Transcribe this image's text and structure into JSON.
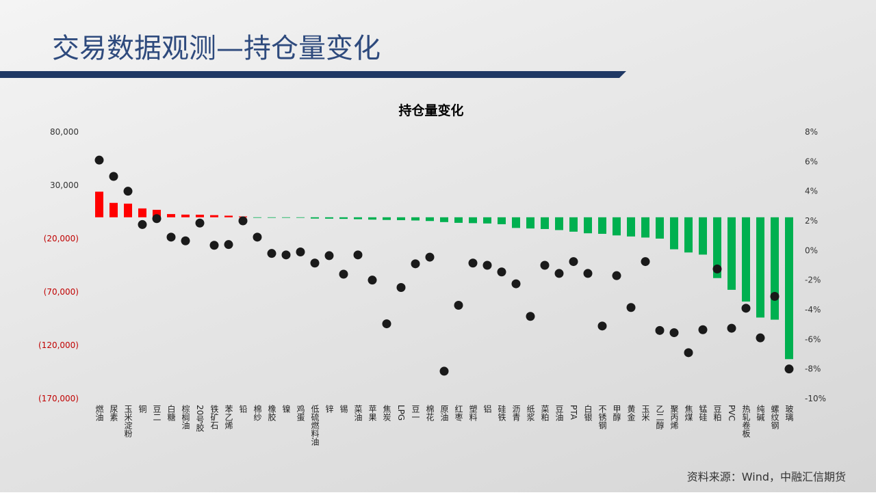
{
  "slide_title": "交易数据观测—持仓量变化",
  "source": "资料来源：Wind，中融汇信期货",
  "chart_data": {
    "type": "bar_dot",
    "title": "持仓量变化",
    "categories": [
      "燃油",
      "尿素",
      "玉米淀粉",
      "铜",
      "豆二",
      "白糖",
      "棕榈油",
      "20号胶",
      "铁矿石",
      "苯乙烯",
      "铅",
      "棉纱",
      "橡胶",
      "镍",
      "鸡蛋",
      "低硫燃料油",
      "锌",
      "锡",
      "菜油",
      "苹果",
      "焦炭",
      "LPG",
      "豆一",
      "棉花",
      "原油",
      "红枣",
      "塑料",
      "铝",
      "硅铁",
      "沥青",
      "纸浆",
      "菜粕",
      "豆油",
      "PTA",
      "白银",
      "不锈钢",
      "甲醇",
      "黄金",
      "玉米",
      "乙二醇",
      "聚丙烯",
      "焦煤",
      "锰硅",
      "豆粕",
      "PVC",
      "热轧卷板",
      "纯碱",
      "螺纹钢",
      "玻璃"
    ],
    "series": [
      {
        "positive_color": "#ff0000",
        "negative_color": "#00b050",
        "values": [
          24000,
          13500,
          12800,
          8300,
          7000,
          3000,
          2500,
          2400,
          2000,
          1500,
          800,
          -100,
          -150,
          -200,
          -300,
          -1200,
          -1300,
          -1500,
          -1800,
          -2200,
          -2500,
          -2700,
          -3000,
          -3500,
          -4500,
          -5200,
          -5500,
          -5800,
          -6500,
          -10000,
          -10500,
          -11000,
          -12000,
          -13500,
          -15000,
          -15500,
          -17000,
          -18000,
          -19000,
          -20000,
          -30000,
          -33000,
          -35000,
          -57000,
          -68000,
          -79000,
          -94000,
          -96000,
          -133000
        ]
      },
      {
        "color": "#1a1a1a",
        "axis": "y2",
        "values": [
          6.1,
          5.0,
          4.0,
          1.75,
          2.15,
          0.9,
          0.65,
          1.85,
          0.35,
          0.4,
          2.0,
          0.9,
          -0.2,
          -0.3,
          -0.1,
          -0.85,
          -0.35,
          -1.6,
          -0.3,
          -2.0,
          -4.95,
          -2.5,
          -0.9,
          -0.45,
          -8.15,
          -3.7,
          -0.85,
          -1.0,
          -1.45,
          -2.25,
          -4.45,
          -1.0,
          -1.55,
          -0.75,
          -1.55,
          -5.1,
          -1.7,
          -3.85,
          -0.75,
          -5.4,
          -5.55,
          -6.9,
          -5.35,
          -1.25,
          -5.25,
          -3.9,
          -5.9,
          -3.1,
          -8.0
        ]
      }
    ],
    "ylim": [
      -170000,
      80000
    ],
    "yticks": [
      {
        "value": -170000,
        "label": "(170,000)"
      },
      {
        "value": -120000,
        "label": "(120,000)"
      },
      {
        "value": -70000,
        "label": "(70,000)"
      },
      {
        "value": -20000,
        "label": "(20,000)"
      },
      {
        "value": 30000,
        "label": "30,000"
      },
      {
        "value": 80000,
        "label": "80,000"
      }
    ],
    "negative_tick_color": "#c00000",
    "y2lim": [
      -10,
      8
    ],
    "y2ticks": [
      {
        "value": -10,
        "label": "-10%"
      },
      {
        "value": -8,
        "label": "-8%"
      },
      {
        "value": -6,
        "label": "-6%"
      },
      {
        "value": -4,
        "label": "-4%"
      },
      {
        "value": -2,
        "label": "-2%"
      },
      {
        "value": 0,
        "label": "0%"
      },
      {
        "value": 2,
        "label": "2%"
      },
      {
        "value": 4,
        "label": "4%"
      },
      {
        "value": 6,
        "label": "6%"
      },
      {
        "value": 8,
        "label": "8%"
      }
    ]
  }
}
